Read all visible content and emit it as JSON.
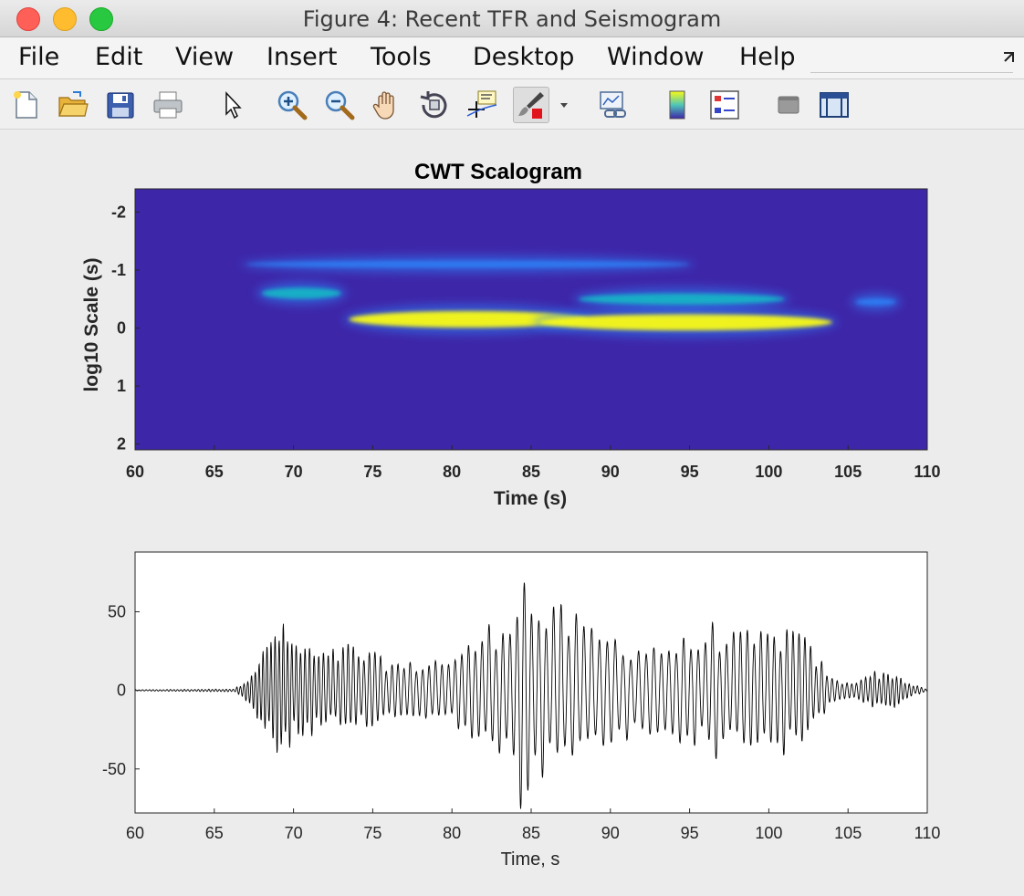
{
  "window": {
    "title": "Figure 4: Recent TFR and Seismogram"
  },
  "menu": {
    "items": [
      "File",
      "Edit",
      "View",
      "Insert",
      "Tools",
      "Desktop",
      "Window",
      "Help"
    ]
  },
  "toolbar": {
    "icons": [
      "new-figure-icon",
      "open-file-icon",
      "save-icon",
      "print-icon",
      "pointer-arrow-icon",
      "zoom-in-icon",
      "zoom-out-icon",
      "pan-hand-icon",
      "rotate-3d-icon",
      "data-cursor-icon",
      "brush-icon",
      "dropdown-arrow-icon",
      "link-plot-icon",
      "colorbar-icon",
      "legend-icon",
      "hide-plot-tools-icon",
      "show-plot-tools-icon"
    ]
  },
  "colors": {
    "scalogram_bg": "#3e26a8",
    "scalogram_low": "#2f7bf2",
    "scalogram_mid": "#17b3c6",
    "scalogram_high": "#f9fb15",
    "trace": "#000000"
  },
  "chart_data": [
    {
      "type": "heatmap",
      "title": "CWT Scalogram",
      "xlabel": "Time (s)",
      "ylabel": "log10 Scale (s)",
      "xlim": [
        60,
        110
      ],
      "ylim": [
        -2.4,
        2.1
      ],
      "y_reversed": true,
      "xticks": [
        60,
        65,
        70,
        75,
        80,
        85,
        90,
        95,
        100,
        105,
        110
      ],
      "yticks": [
        -2,
        -1,
        0,
        1,
        2
      ],
      "colormap": "parula",
      "energy_features": [
        {
          "t_start": 68.0,
          "t_end": 73.0,
          "log10_scale": -0.6,
          "level": "medium"
        },
        {
          "t_start": 73.5,
          "t_end": 88.5,
          "log10_scale": -0.15,
          "level": "high"
        },
        {
          "t_start": 85.5,
          "t_end": 104.0,
          "log10_scale": -0.1,
          "level": "high"
        },
        {
          "t_start": 88.0,
          "t_end": 101.0,
          "log10_scale": -0.5,
          "level": "medium"
        },
        {
          "t_start": 105.5,
          "t_end": 108.0,
          "log10_scale": -0.45,
          "level": "low"
        },
        {
          "t_start": 67.0,
          "t_end": 95.0,
          "log10_scale": -1.1,
          "level": "low"
        }
      ]
    },
    {
      "type": "line",
      "title": "",
      "xlabel": "Time, s",
      "ylabel": "",
      "xlim": [
        60,
        110
      ],
      "ylim": [
        -78,
        88
      ],
      "xticks": [
        60,
        65,
        70,
        75,
        80,
        85,
        90,
        95,
        100,
        105,
        110
      ],
      "yticks": [
        -50,
        0,
        50
      ],
      "grid": false,
      "series": [
        {
          "color": "#000000",
          "envelope": [
            {
              "t": 60.0,
              "amp": 0.4
            },
            {
              "t": 66.3,
              "amp": 1
            },
            {
              "t": 67.0,
              "amp": 8
            },
            {
              "t": 68.0,
              "amp": 25
            },
            {
              "t": 69.0,
              "amp": 48
            },
            {
              "t": 70.0,
              "amp": 35
            },
            {
              "t": 71.0,
              "amp": 30
            },
            {
              "t": 72.0,
              "amp": 25
            },
            {
              "t": 73.5,
              "amp": 32
            },
            {
              "t": 75.0,
              "amp": 25
            },
            {
              "t": 77.0,
              "amp": 18
            },
            {
              "t": 79.0,
              "amp": 22
            },
            {
              "t": 80.5,
              "amp": 25
            },
            {
              "t": 82.0,
              "amp": 42
            },
            {
              "t": 83.5,
              "amp": 52
            },
            {
              "t": 84.3,
              "amp": 85
            },
            {
              "t": 85.5,
              "amp": 58
            },
            {
              "t": 87.0,
              "amp": 55
            },
            {
              "t": 89.0,
              "amp": 42
            },
            {
              "t": 92.0,
              "amp": 32
            },
            {
              "t": 95.0,
              "amp": 35
            },
            {
              "t": 96.5,
              "amp": 45
            },
            {
              "t": 98.0,
              "amp": 38
            },
            {
              "t": 100.0,
              "amp": 40
            },
            {
              "t": 101.5,
              "amp": 45
            },
            {
              "t": 103.0,
              "amp": 25
            },
            {
              "t": 104.0,
              "amp": 8
            },
            {
              "t": 105.0,
              "amp": 5
            },
            {
              "t": 106.5,
              "amp": 13
            },
            {
              "t": 108.0,
              "amp": 12
            },
            {
              "t": 109.0,
              "amp": 4
            },
            {
              "t": 110.0,
              "amp": 1
            }
          ],
          "period": [
            {
              "t": 66.0,
              "p": 0.22
            },
            {
              "t": 72.0,
              "p": 0.3
            },
            {
              "t": 78.0,
              "p": 0.4
            },
            {
              "t": 84.0,
              "p": 0.45
            },
            {
              "t": 90.0,
              "p": 0.5
            },
            {
              "t": 100.0,
              "p": 0.42
            },
            {
              "t": 105.0,
              "p": 0.3
            },
            {
              "t": 110.0,
              "p": 0.25
            }
          ]
        }
      ]
    }
  ]
}
